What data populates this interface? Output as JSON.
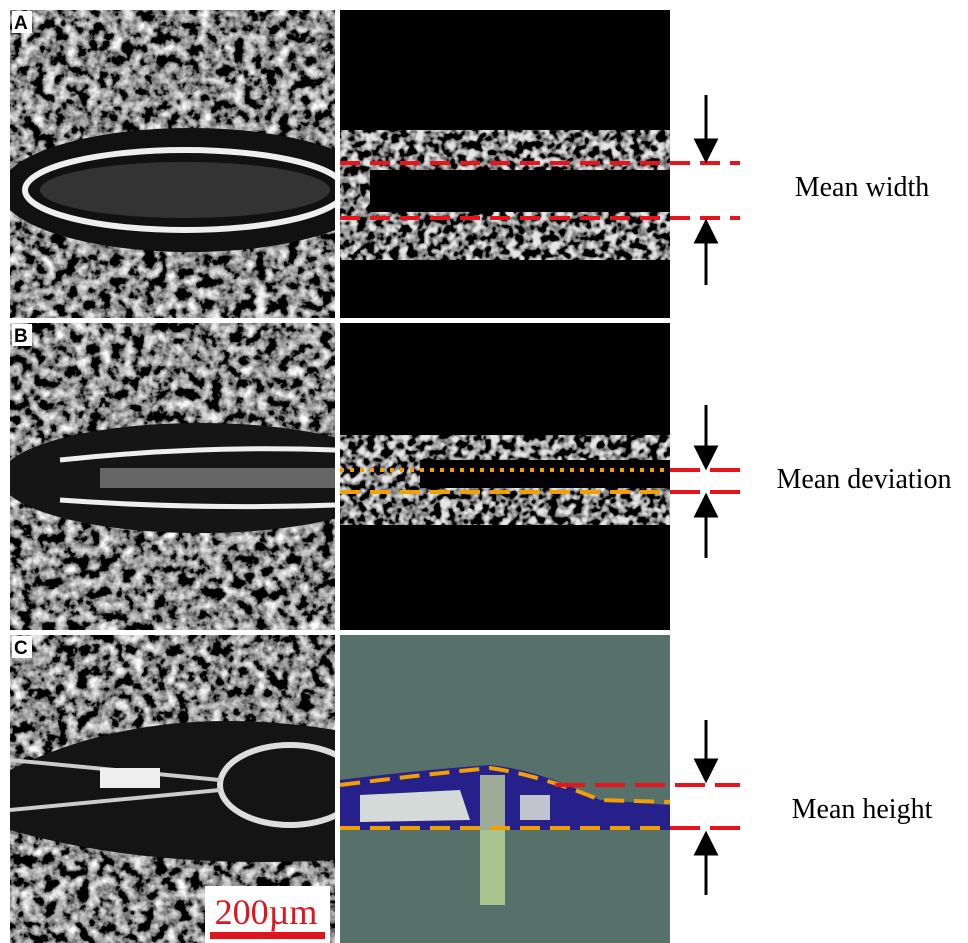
{
  "panels": [
    {
      "label": "A",
      "annotation": "Mean width"
    },
    {
      "label": "B",
      "annotation": "Mean deviation"
    },
    {
      "label": "C",
      "annotation": "Mean height"
    }
  ],
  "scale_bar": "200µm"
}
